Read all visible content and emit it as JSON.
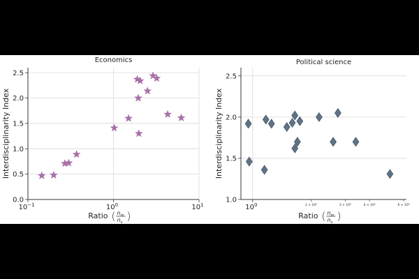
{
  "chart_data": [
    {
      "type": "scatter",
      "title": "Economics",
      "xlabel": "Ratio",
      "ylabel": "Interdisciplinarity Index",
      "xscale": "log",
      "xlim": [
        0.1,
        10
      ],
      "ylim": [
        0,
        2.6
      ],
      "xticks": [
        {
          "value": 0.1,
          "base": "10",
          "exp": "−1"
        },
        {
          "value": 1,
          "label": "10",
          "exp": "0"
        },
        {
          "value": 10,
          "base": "10",
          "exp": "1"
        }
      ],
      "yticks": [
        "0.0",
        "0.5",
        "1.0",
        "1.5",
        "2.0",
        "2.5"
      ],
      "grid": true,
      "marker": "star",
      "color": "#a86fa8",
      "points": [
        {
          "x": 0.145,
          "y": 0.47
        },
        {
          "x": 0.2,
          "y": 0.48
        },
        {
          "x": 0.27,
          "y": 0.71
        },
        {
          "x": 0.3,
          "y": 0.72
        },
        {
          "x": 0.37,
          "y": 0.89
        },
        {
          "x": 1.02,
          "y": 1.41
        },
        {
          "x": 1.5,
          "y": 1.6
        },
        {
          "x": 1.9,
          "y": 2.37
        },
        {
          "x": 2.05,
          "y": 2.34
        },
        {
          "x": 1.95,
          "y": 2.0
        },
        {
          "x": 1.98,
          "y": 1.3
        },
        {
          "x": 2.5,
          "y": 2.14
        },
        {
          "x": 2.9,
          "y": 2.44
        },
        {
          "x": 3.2,
          "y": 2.39
        },
        {
          "x": 4.3,
          "y": 1.68
        },
        {
          "x": 6.2,
          "y": 1.61
        }
      ]
    },
    {
      "type": "scatter",
      "title": "Political science",
      "xlabel": "Ratio",
      "ylabel": "Interdisciplinarity Index",
      "xscale": "log",
      "xlim": [
        0.87,
        6.2
      ],
      "ylim": [
        1.0,
        2.6
      ],
      "xticks": [
        {
          "value": 1,
          "label": "10",
          "exp": "0"
        },
        {
          "value": 2,
          "minor": "2 × 10⁰"
        },
        {
          "value": 3,
          "minor": "3 × 10⁰"
        },
        {
          "value": 4,
          "minor": "4 × 10⁰"
        },
        {
          "value": 6,
          "minor": "6 × 10⁰"
        }
      ],
      "yticks": [
        "1.0",
        "1.5",
        "2.0",
        "2.5"
      ],
      "grid": true,
      "marker": "diamond",
      "color": "#5f7286",
      "points": [
        {
          "x": 0.95,
          "y": 1.92
        },
        {
          "x": 0.96,
          "y": 1.46
        },
        {
          "x": 1.15,
          "y": 1.36
        },
        {
          "x": 1.17,
          "y": 1.97
        },
        {
          "x": 1.25,
          "y": 1.92
        },
        {
          "x": 1.5,
          "y": 1.88
        },
        {
          "x": 1.6,
          "y": 1.93
        },
        {
          "x": 1.65,
          "y": 2.02
        },
        {
          "x": 1.65,
          "y": 1.62
        },
        {
          "x": 1.7,
          "y": 1.7
        },
        {
          "x": 1.75,
          "y": 1.95
        },
        {
          "x": 2.2,
          "y": 2.0
        },
        {
          "x": 2.6,
          "y": 1.7
        },
        {
          "x": 2.75,
          "y": 2.05
        },
        {
          "x": 3.4,
          "y": 1.7
        },
        {
          "x": 5.1,
          "y": 1.31
        }
      ]
    }
  ]
}
